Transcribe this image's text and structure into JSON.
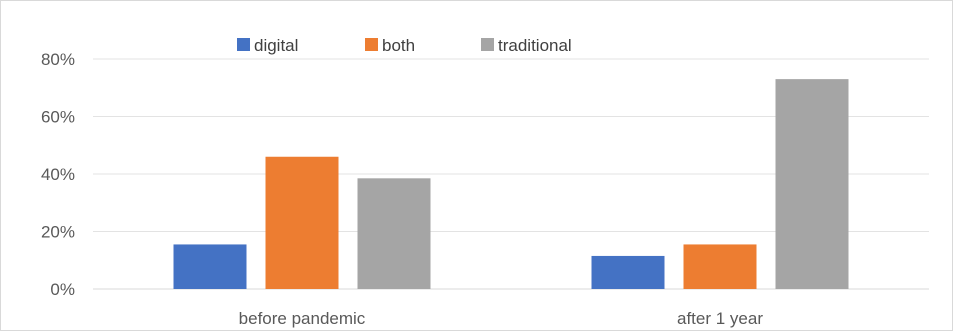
{
  "chart_data": {
    "type": "bar",
    "categories": [
      "before pandemic",
      "after 1 year"
    ],
    "series": [
      {
        "name": "digital",
        "color": "#4472c4",
        "values": [
          15.5,
          11.5
        ]
      },
      {
        "name": "both",
        "color": "#ed7d31",
        "values": [
          46,
          15.5
        ]
      },
      {
        "name": "traditional",
        "color": "#a5a5a5",
        "values": [
          38.5,
          73
        ]
      }
    ],
    "yticks": [
      "0%",
      "20%",
      "40%",
      "60%",
      "80%"
    ],
    "ylim": [
      0,
      80
    ],
    "grid": true,
    "legend_position": "top-center"
  }
}
